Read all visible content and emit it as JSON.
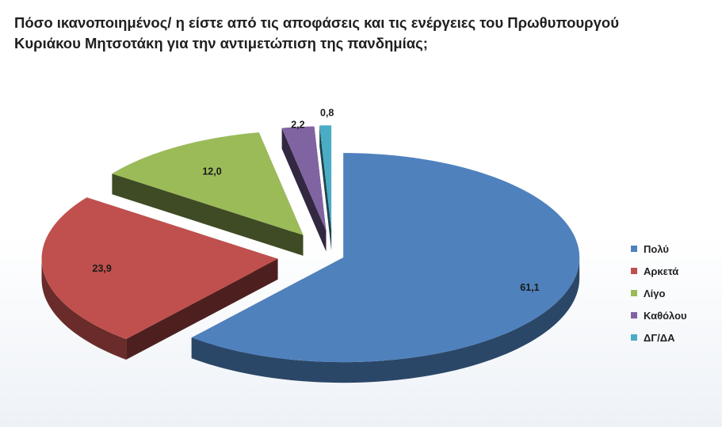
{
  "title": {
    "line1": "Πόσο ικανοποιημένος/ η είστε από τις αποφάσεις και τις ενέργειες του Πρωθυπουργού",
    "line2": "Κυριάκου Μητσοτάκη  για την αντιμετώπιση της πανδημίας;"
  },
  "chart_data": {
    "type": "pie",
    "title": "Πόσο ικανοποιημένος/ η είστε από τις αποφάσεις και τις ενέργειες του Πρωθυπουργού Κυριάκου Μητσοτάκη  για την αντιμετώπιση της πανδημίας;",
    "categories": [
      "Πολύ",
      "Αρκετά",
      "Λίγο",
      "Καθόλου",
      "ΔΓ/ΔΑ"
    ],
    "values": [
      61.1,
      23.9,
      12.0,
      2.2,
      0.8
    ],
    "labels": [
      "61,1",
      "23,9",
      "12,0",
      "2,2",
      "0,8"
    ],
    "colors": [
      "#4f81bd",
      "#c0504d",
      "#9bbb59",
      "#8064a2",
      "#4bacc6"
    ],
    "style": "3d-exploded",
    "legend_position": "right"
  }
}
